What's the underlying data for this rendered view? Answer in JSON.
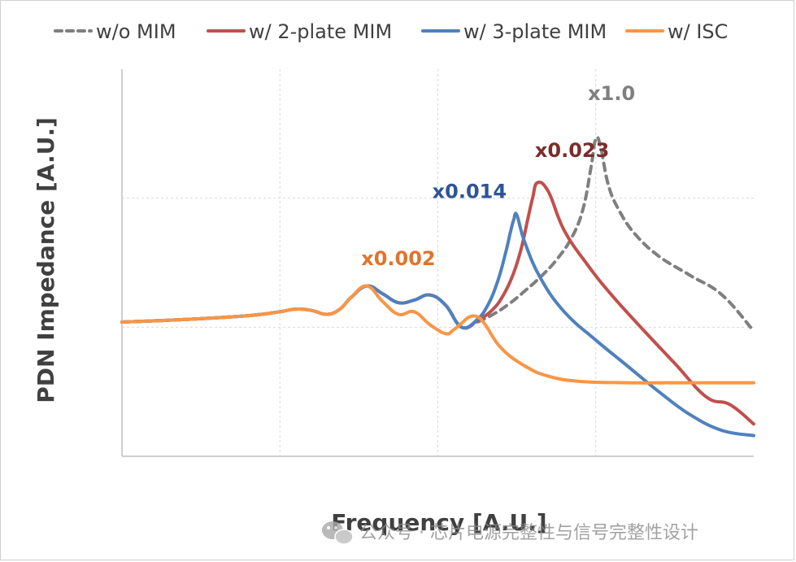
{
  "chart_data": {
    "type": "line",
    "title": "",
    "xlabel": "Frequency [A.U.]",
    "ylabel": "PDN Impedance [A.U.]",
    "x_ticks_shown": false,
    "y_ticks_shown": false,
    "grid": true,
    "xlim": [
      0,
      4
    ],
    "ylim": [
      0,
      3
    ],
    "legend_position": "top",
    "series": [
      {
        "name": "w/o MIM",
        "color": "#7f7f7f",
        "dash": "dashed",
        "x": [
          0,
          0.4,
          0.8,
          1.0,
          1.1,
          1.2,
          1.3,
          1.38,
          1.45,
          1.55,
          1.65,
          1.75,
          1.85,
          1.95,
          2.05,
          2.15,
          2.25,
          2.35,
          2.45,
          2.55,
          2.65,
          2.75,
          2.85,
          2.92,
          2.97,
          3.0,
          3.03,
          3.08,
          3.15,
          3.25,
          3.4,
          3.6,
          3.8,
          4.0
        ],
        "y": [
          1.04,
          1.06,
          1.09,
          1.12,
          1.14,
          1.13,
          1.1,
          1.14,
          1.23,
          1.32,
          1.26,
          1.19,
          1.21,
          1.25,
          1.17,
          1.0,
          1.04,
          1.1,
          1.18,
          1.28,
          1.39,
          1.52,
          1.7,
          1.92,
          2.24,
          2.46,
          2.4,
          2.1,
          1.9,
          1.72,
          1.55,
          1.4,
          1.25,
          0.97
        ]
      },
      {
        "name": "w/ 2-plate MIM",
        "color": "#c0504d",
        "dash": "solid",
        "x": [
          0,
          0.4,
          0.8,
          1.0,
          1.1,
          1.2,
          1.3,
          1.38,
          1.45,
          1.55,
          1.65,
          1.75,
          1.85,
          1.95,
          2.05,
          2.15,
          2.25,
          2.35,
          2.42,
          2.48,
          2.53,
          2.57,
          2.6,
          2.63,
          2.7,
          2.8,
          2.95,
          3.1,
          3.3,
          3.5,
          3.7,
          3.85,
          4.0
        ],
        "y": [
          1.04,
          1.06,
          1.09,
          1.12,
          1.14,
          1.13,
          1.1,
          1.14,
          1.23,
          1.32,
          1.26,
          1.19,
          1.21,
          1.25,
          1.17,
          1.0,
          1.05,
          1.14,
          1.26,
          1.42,
          1.62,
          1.84,
          2.0,
          2.12,
          2.05,
          1.75,
          1.48,
          1.25,
          0.98,
          0.72,
          0.46,
          0.4,
          0.25
        ]
      },
      {
        "name": "w/ 3-plate MIM",
        "color": "#4f81bd",
        "dash": "solid",
        "x": [
          0,
          0.4,
          0.8,
          1.0,
          1.1,
          1.2,
          1.3,
          1.38,
          1.45,
          1.55,
          1.65,
          1.75,
          1.85,
          1.95,
          2.05,
          2.15,
          2.25,
          2.32,
          2.38,
          2.43,
          2.46,
          2.48,
          2.5,
          2.55,
          2.65,
          2.8,
          3.0,
          3.2,
          3.4,
          3.6,
          3.8,
          4.0
        ],
        "y": [
          1.04,
          1.06,
          1.09,
          1.12,
          1.14,
          1.13,
          1.1,
          1.14,
          1.23,
          1.32,
          1.26,
          1.19,
          1.21,
          1.25,
          1.17,
          1.0,
          1.06,
          1.18,
          1.36,
          1.58,
          1.74,
          1.83,
          1.87,
          1.66,
          1.38,
          1.12,
          0.9,
          0.7,
          0.5,
          0.32,
          0.2,
          0.16
        ]
      },
      {
        "name": "w/ ISC",
        "color": "#f79646",
        "dash": "solid",
        "x": [
          0,
          0.4,
          0.8,
          1.0,
          1.1,
          1.2,
          1.3,
          1.38,
          1.45,
          1.55,
          1.65,
          1.75,
          1.85,
          1.95,
          2.05,
          2.1,
          2.15,
          2.2,
          2.25,
          2.3,
          2.4,
          2.55,
          2.7,
          2.9,
          3.2,
          3.6,
          4.0
        ],
        "y": [
          1.04,
          1.06,
          1.09,
          1.12,
          1.14,
          1.13,
          1.1,
          1.14,
          1.23,
          1.32,
          1.2,
          1.1,
          1.12,
          1.02,
          0.95,
          0.98,
          1.03,
          1.08,
          1.08,
          1.02,
          0.84,
          0.7,
          0.62,
          0.58,
          0.57,
          0.57,
          0.57
        ]
      }
    ],
    "annotations": [
      {
        "text": "x1.0",
        "color": "#7f7f7f",
        "x": 3.1,
        "y": 2.76
      },
      {
        "text": "x0.023",
        "color": "#7b2d2b",
        "x": 2.85,
        "y": 2.32
      },
      {
        "text": "x0.014",
        "color": "#2f5496",
        "x": 2.2,
        "y": 2.0
      },
      {
        "text": "x0.002",
        "color": "#e0742b",
        "x": 1.75,
        "y": 1.48
      }
    ]
  },
  "watermark": {
    "text": "公众号 · 芯片电源完整性与信号完整性设计"
  }
}
